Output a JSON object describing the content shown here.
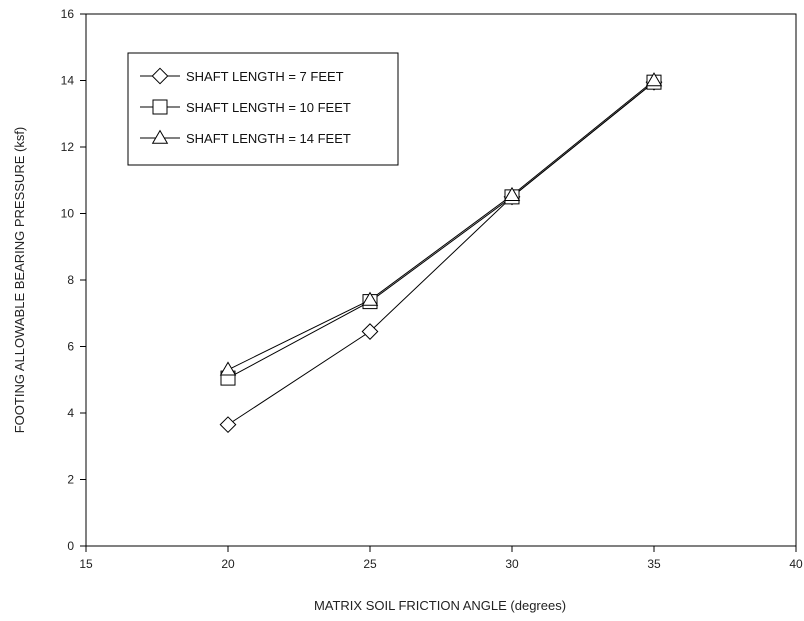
{
  "chart_data": {
    "type": "line",
    "xlabel": "MATRIX SOIL FRICTION ANGLE (degrees)",
    "ylabel": "FOOTING ALLOWABLE BEARING PRESSURE (ksf)",
    "xlim": [
      15,
      40
    ],
    "ylim": [
      0,
      16
    ],
    "xticks": [
      15,
      20,
      25,
      30,
      35,
      40
    ],
    "yticks": [
      0,
      2,
      4,
      6,
      8,
      10,
      12,
      14,
      16
    ],
    "grid": false,
    "legend_position": "top-left",
    "series": [
      {
        "name": "SHAFT LENGTH = 7 FEET",
        "marker": "diamond",
        "x": [
          20,
          25,
          30,
          35
        ],
        "y": [
          3.65,
          6.45,
          10.5,
          13.95
        ]
      },
      {
        "name": "SHAFT LENGTH = 10 FEET",
        "marker": "square",
        "x": [
          20,
          25,
          30,
          35
        ],
        "y": [
          5.05,
          7.35,
          10.5,
          13.95
        ]
      },
      {
        "name": "SHAFT LENGTH = 14 FEET",
        "marker": "triangle",
        "x": [
          20,
          25,
          30,
          35
        ],
        "y": [
          5.3,
          7.4,
          10.55,
          14.0
        ]
      }
    ]
  }
}
